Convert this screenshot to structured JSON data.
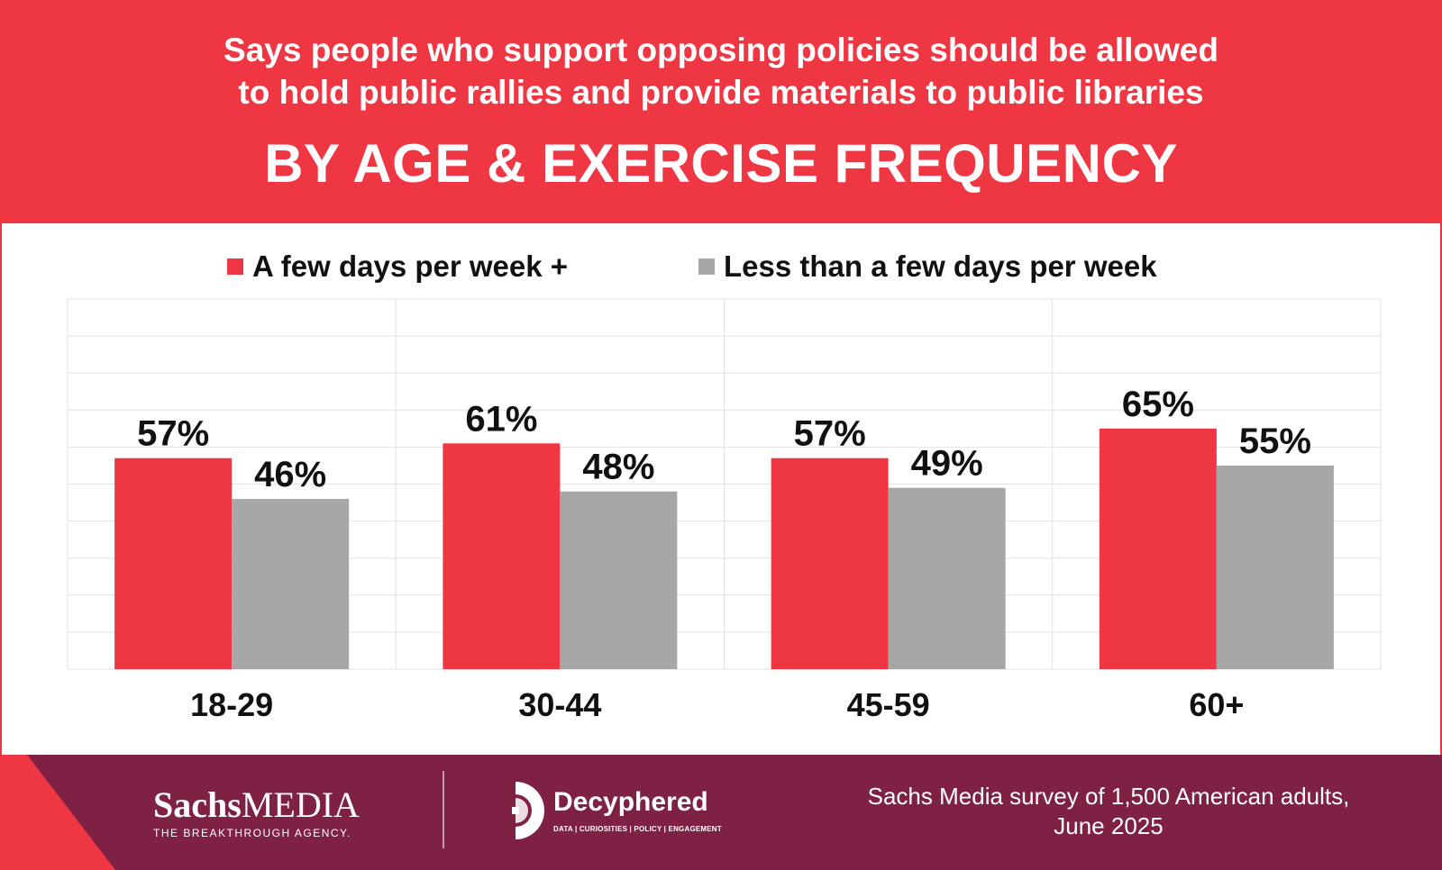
{
  "header": {
    "subtitle_line1": "Says people who support opposing policies should be allowed",
    "subtitle_line2": "to hold public rallies and provide materials to public libraries",
    "title": "BY AGE & EXERCISE FREQUENCY"
  },
  "colors": {
    "brand_red": "#ef3744",
    "series_gray": "#a7a7a7",
    "footer_purple": "#7f2045",
    "grid": "#e2e2e2"
  },
  "chart_data": {
    "type": "bar",
    "categories": [
      "18-29",
      "30-44",
      "45-59",
      "60+"
    ],
    "series": [
      {
        "name": "A few days per week +",
        "values": [
          57,
          61,
          57,
          65
        ],
        "labels": [
          "57%",
          "61%",
          "57%",
          "65%"
        ]
      },
      {
        "name": "Less than a few days per week",
        "values": [
          46,
          48,
          49,
          55
        ],
        "labels": [
          "46%",
          "48%",
          "49%",
          "55%"
        ]
      }
    ],
    "ylim": [
      0,
      100
    ],
    "grid": true,
    "legend": "top"
  },
  "footer": {
    "sachs_bold": "Sachs",
    "sachs_light": "MEDIA",
    "sachs_tagline": "THE BREAKTHROUGH AGENCY.",
    "decyphered_name": "Decyphered",
    "decyphered_tagline": "DATA | CURIOSITIES | POLICY | ENGAGEMENT",
    "source_line1": "Sachs Media survey of 1,500 American adults,",
    "source_line2": "June 2025",
    "logo_icon": "decyphered-logo-icon"
  }
}
